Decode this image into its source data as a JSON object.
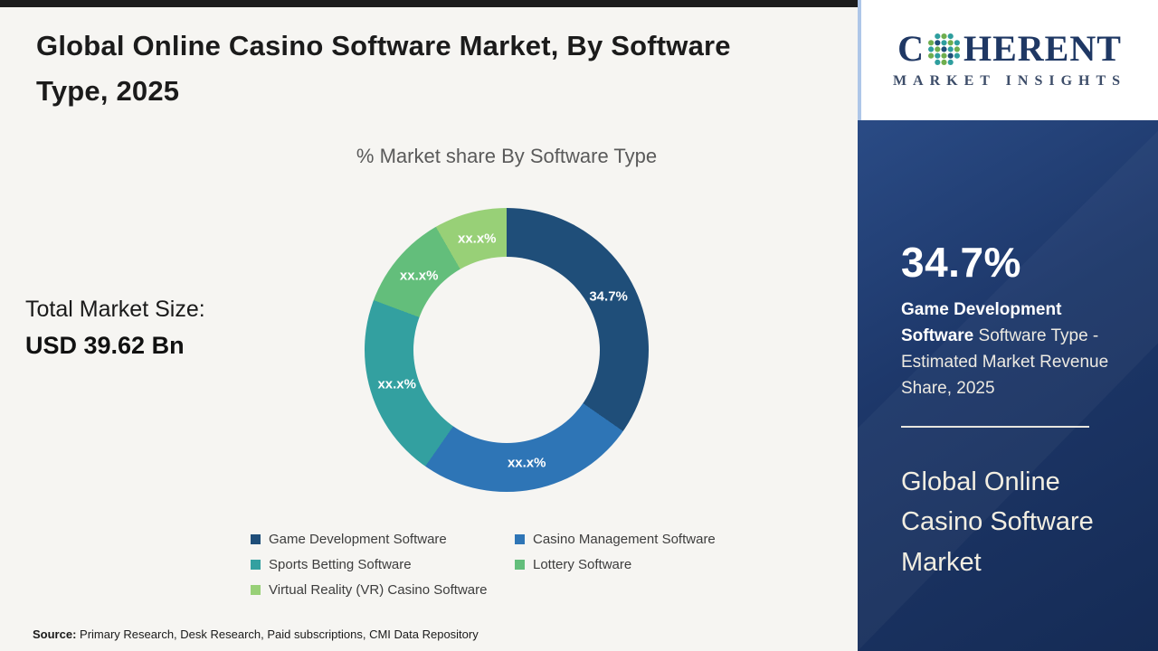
{
  "header": {
    "title": "Global Online Casino Software Market, By Software Type, 2025"
  },
  "total_market": {
    "label": "Total Market Size:",
    "value": "USD 39.62 Bn"
  },
  "chart_data": {
    "type": "pie",
    "donut": true,
    "title": "% Market share By Software Type",
    "start_angle_deg": 0,
    "direction": "clockwise",
    "segments": [
      {
        "label": "Game Development Software",
        "display": "34.7%",
        "value": 34.7,
        "color": "#1F4E79"
      },
      {
        "label": "Casino Management Software",
        "display": "xx.x%",
        "value": 25.0,
        "color": "#2E75B6"
      },
      {
        "label": "Sports Betting Software",
        "display": "xx.x%",
        "value": 21.0,
        "color": "#33A0A0"
      },
      {
        "label": "Lottery Software",
        "display": "xx.x%",
        "value": 11.0,
        "color": "#63BE7B"
      },
      {
        "label": "Virtual Reality (VR) Casino Software",
        "display": "xx.x%",
        "value": 8.3,
        "color": "#98D077"
      }
    ],
    "note": "Only the Game Development Software share (34.7%) is labeled; remaining segment values are masked as xx.x% and estimated from arc sizes."
  },
  "sidebar": {
    "logo": {
      "line1_pre": "C",
      "line1_post": "HERENT",
      "line2": "MARKET INSIGHTS"
    },
    "stat_value": "34.7%",
    "stat_bold": "Game Development Software",
    "stat_rest": " Software Type - Estimated Market Revenue Share, 2025",
    "market_name": "Global Online Casino Software Market",
    "accent_navy": "#1C3666"
  },
  "footer": {
    "source_label": "Source:",
    "source_text": " Primary Research, Desk Research, Paid subscriptions, CMI Data Repository"
  }
}
